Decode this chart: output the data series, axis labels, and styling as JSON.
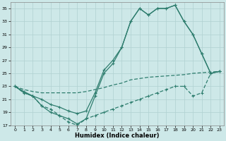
{
  "xlabel": "Humidex (Indice chaleur)",
  "bg_color": "#cde8e8",
  "grid_major_color": "#b0d0d0",
  "grid_minor_color": "#c0dede",
  "line_color": "#2e7d6e",
  "ylim": [
    17,
    36
  ],
  "xlim": [
    -0.5,
    23.5
  ],
  "yticks": [
    17,
    19,
    21,
    23,
    25,
    27,
    29,
    31,
    33,
    35
  ],
  "xticks": [
    0,
    1,
    2,
    3,
    4,
    5,
    6,
    7,
    8,
    9,
    10,
    11,
    12,
    13,
    14,
    15,
    16,
    17,
    18,
    19,
    20,
    21,
    22,
    23
  ],
  "line_high_x": [
    0,
    1,
    2,
    3,
    4,
    5,
    6,
    7,
    8,
    9,
    10,
    11,
    12,
    13,
    14,
    15,
    16,
    17,
    18,
    19,
    20,
    21,
    22,
    23
  ],
  "line_high_y": [
    23,
    22,
    21.5,
    20,
    19,
    18.5,
    18,
    17.2,
    18,
    21.5,
    25,
    26.5,
    29,
    33,
    35,
    34,
    35,
    35,
    35.5,
    33,
    31,
    28,
    25,
    25.3
  ],
  "line_mid_x": [
    0,
    1,
    2,
    3,
    4,
    5,
    6,
    7,
    8,
    9,
    10,
    11,
    12,
    13,
    14,
    15,
    16,
    17,
    18,
    19,
    20,
    21,
    22,
    23
  ],
  "line_mid_y": [
    23,
    22.2,
    21.5,
    21,
    20.2,
    19.8,
    19.2,
    18.8,
    19.2,
    22,
    25.5,
    27,
    29,
    33,
    35,
    34,
    35,
    35,
    35.5,
    33,
    31,
    28,
    25,
    25.3
  ],
  "line_low_x": [
    0,
    1,
    2,
    3,
    4,
    5,
    6,
    7,
    8,
    9,
    10,
    11,
    12,
    13,
    14,
    15,
    16,
    17,
    18,
    19,
    20,
    21,
    22,
    23
  ],
  "line_low_y": [
    23,
    22,
    21.5,
    20,
    19.5,
    18.5,
    17.5,
    17,
    18,
    18.5,
    19,
    19.5,
    20,
    20.5,
    21,
    21.5,
    22,
    22.5,
    23,
    23,
    21.5,
    22,
    25,
    25.3
  ],
  "line_flat_x": [
    0,
    1,
    2,
    3,
    4,
    5,
    6,
    7,
    8,
    9,
    10,
    11,
    12,
    13,
    14,
    15,
    16,
    17,
    18,
    19,
    20,
    21,
    22,
    23
  ],
  "line_flat_y": [
    23,
    22.5,
    22.2,
    22,
    22,
    22,
    22,
    22,
    22.2,
    22.5,
    22.8,
    23.2,
    23.5,
    24,
    24.2,
    24.4,
    24.5,
    24.6,
    24.7,
    24.8,
    25,
    25.1,
    25.2,
    25.3
  ]
}
